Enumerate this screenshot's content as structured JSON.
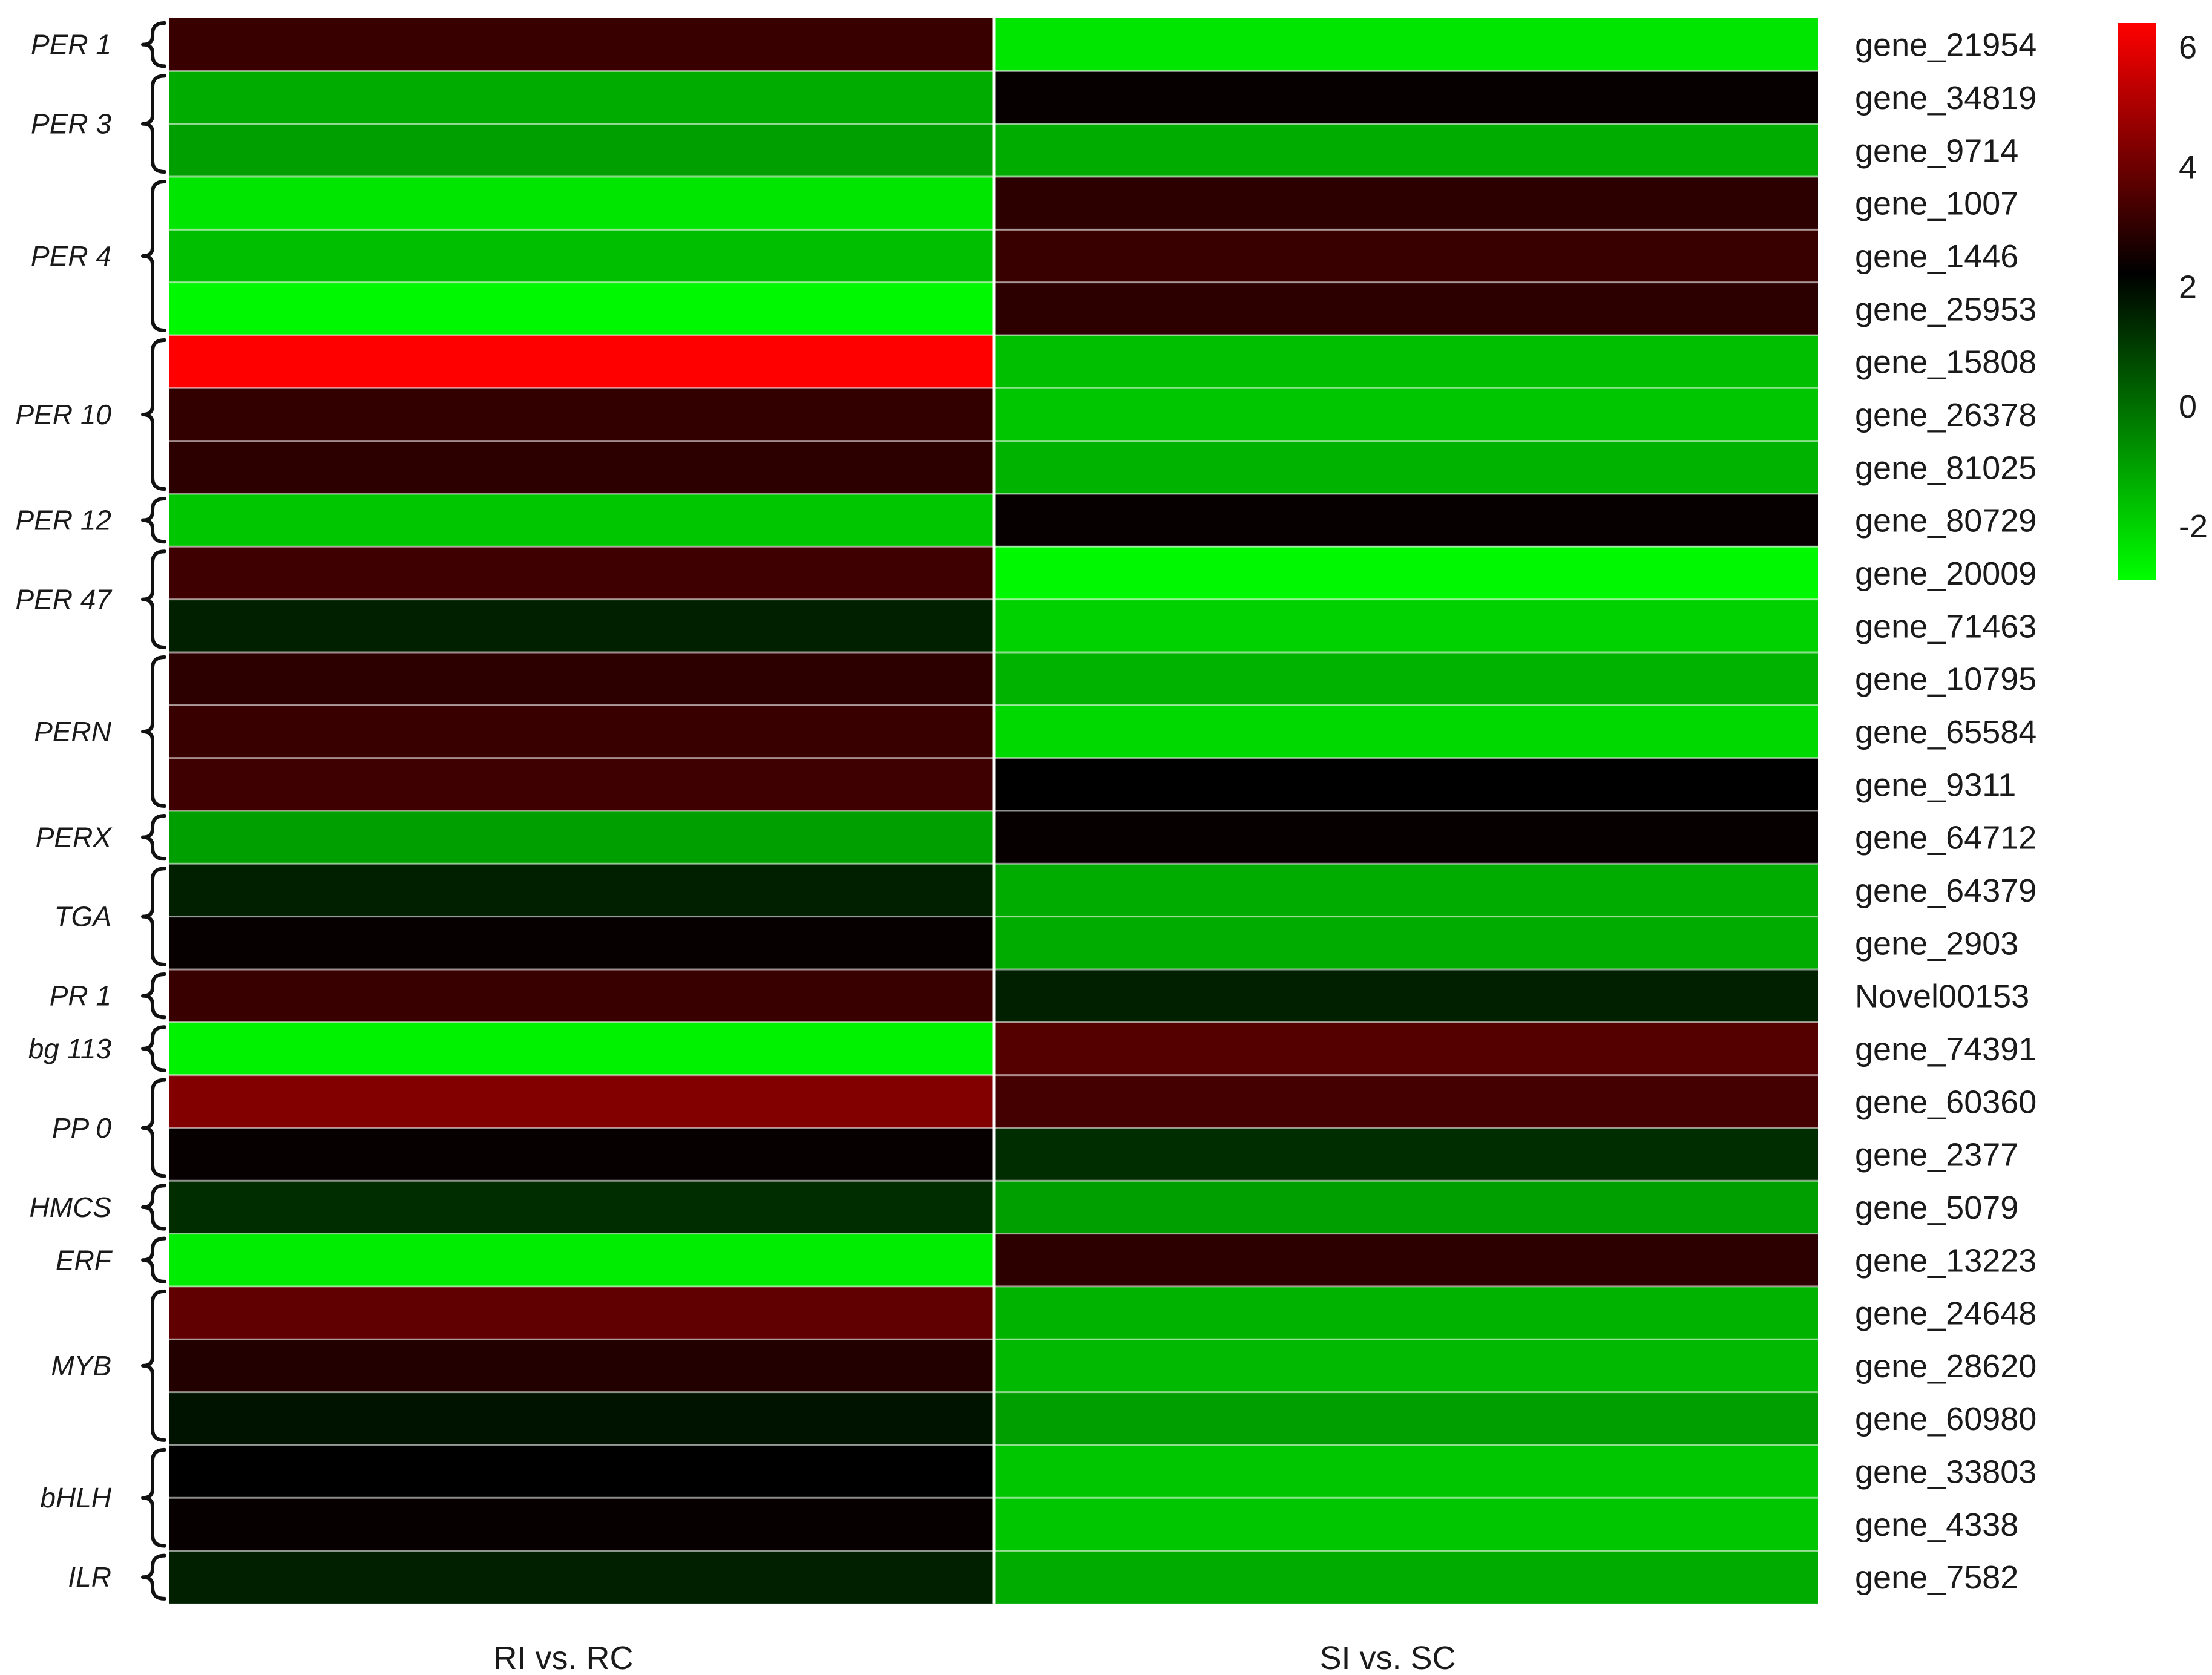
{
  "chart_data": {
    "type": "heatmap",
    "columns": [
      "RI vs. RC",
      "SI vs. SC"
    ],
    "rows": [
      {
        "gene": "gene_21954",
        "values": [
          2.5,
          -2.1
        ]
      },
      {
        "gene": "gene_34819",
        "values": [
          -1.2,
          1.6
        ]
      },
      {
        "gene": "gene_9714",
        "values": [
          -1.0,
          -1.2
        ]
      },
      {
        "gene": "gene_1007",
        "values": [
          -2.1,
          2.3
        ]
      },
      {
        "gene": "gene_1446",
        "values": [
          -1.5,
          2.5
        ]
      },
      {
        "gene": "gene_25953",
        "values": [
          -2.4,
          2.3
        ]
      },
      {
        "gene": "gene_15808",
        "values": [
          6.0,
          -1.5
        ]
      },
      {
        "gene": "gene_26378",
        "values": [
          2.4,
          -1.6
        ]
      },
      {
        "gene": "gene_81025",
        "values": [
          2.3,
          -1.3
        ]
      },
      {
        "gene": "gene_80729",
        "values": [
          -1.6,
          1.6
        ]
      },
      {
        "gene": "gene_20009",
        "values": [
          2.6,
          -2.4
        ]
      },
      {
        "gene": "gene_71463",
        "values": [
          1.0,
          -1.8
        ]
      },
      {
        "gene": "gene_10795",
        "values": [
          2.3,
          -1.3
        ]
      },
      {
        "gene": "gene_65584",
        "values": [
          2.5,
          -1.9
        ]
      },
      {
        "gene": "gene_9311",
        "values": [
          2.6,
          1.5
        ]
      },
      {
        "gene": "gene_64712",
        "values": [
          -1.0,
          1.6
        ]
      },
      {
        "gene": "gene_64379",
        "values": [
          1.0,
          -1.2
        ]
      },
      {
        "gene": "gene_2903",
        "values": [
          1.6,
          -1.2
        ]
      },
      {
        "gene": "Novel00153",
        "values": [
          2.5,
          1.0
        ]
      },
      {
        "gene": "gene_74391",
        "values": [
          -2.3,
          3.0
        ]
      },
      {
        "gene": "gene_60360",
        "values": [
          3.8,
          2.7
        ]
      },
      {
        "gene": "gene_2377",
        "values": [
          1.6,
          0.8
        ]
      },
      {
        "gene": "gene_5079",
        "values": [
          0.8,
          -1.0
        ]
      },
      {
        "gene": "gene_13223",
        "values": [
          -2.2,
          2.3
        ]
      },
      {
        "gene": "gene_24648",
        "values": [
          3.2,
          -1.3
        ]
      },
      {
        "gene": "gene_28620",
        "values": [
          2.1,
          -1.4
        ]
      },
      {
        "gene": "gene_60980",
        "values": [
          1.2,
          -1.0
        ]
      },
      {
        "gene": "gene_33803",
        "values": [
          1.5,
          -1.6
        ]
      },
      {
        "gene": "gene_4338",
        "values": [
          1.6,
          -1.6
        ]
      },
      {
        "gene": "gene_7582",
        "values": [
          1.0,
          -1.2
        ]
      }
    ],
    "groups": [
      {
        "label": "PER 1",
        "start": 0,
        "count": 1
      },
      {
        "label": "PER 3",
        "start": 1,
        "count": 2
      },
      {
        "label": "PER 4",
        "start": 3,
        "count": 3
      },
      {
        "label": "PER 10",
        "start": 6,
        "count": 3
      },
      {
        "label": "PER 12",
        "start": 9,
        "count": 1
      },
      {
        "label": "PER 47",
        "start": 10,
        "count": 2
      },
      {
        "label": "PERN",
        "start": 12,
        "count": 3
      },
      {
        "label": "PERX",
        "start": 15,
        "count": 1
      },
      {
        "label": "TGA",
        "start": 16,
        "count": 2
      },
      {
        "label": "PR 1",
        "start": 18,
        "count": 1
      },
      {
        "label": "bg 113",
        "start": 19,
        "count": 1
      },
      {
        "label": "PP 0",
        "start": 20,
        "count": 2
      },
      {
        "label": "HMCS",
        "start": 22,
        "count": 1
      },
      {
        "label": "ERF",
        "start": 23,
        "count": 1
      },
      {
        "label": "MYB",
        "start": 24,
        "count": 3
      },
      {
        "label": "bHLH",
        "start": 27,
        "count": 2
      },
      {
        "label": "ILR",
        "start": 29,
        "count": 1
      }
    ],
    "color_scale": {
      "min": -2.5,
      "mid": 1.5,
      "max": 6,
      "low_color": "#00ff00",
      "mid_color": "#000000",
      "high_color": "#ff0000",
      "ticks": [
        "6",
        "4",
        "2",
        "0",
        "-2"
      ],
      "tick_values": [
        6,
        4,
        2,
        0,
        -2
      ]
    }
  }
}
